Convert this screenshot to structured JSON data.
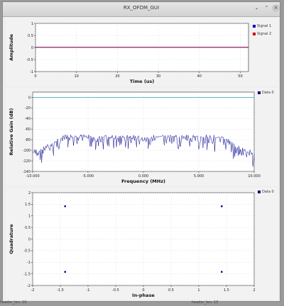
{
  "window": {
    "title": "RX_OFDM_GUI",
    "min_icon": "minimize-icon",
    "max_icon": "maximize-icon",
    "close_icon": "close-icon"
  },
  "footer": {
    "left": "header_len: 10",
    "right": "header_len: 10"
  },
  "colors": {
    "signal1": "#0000cc",
    "signal2": "#cc0000",
    "data0": "#00008b",
    "ref_line": "#3aa3a3"
  },
  "chart_data": [
    {
      "type": "line",
      "title": "",
      "xlabel": "Time (us)",
      "ylabel": "Amplitude",
      "xlim": [
        0,
        52
      ],
      "ylim": [
        -1,
        1
      ],
      "x_ticks": [
        0,
        10,
        20,
        30,
        40,
        50
      ],
      "y_ticks": [
        1,
        0.5,
        0,
        -0.5,
        -1
      ],
      "legend_position": "top-right",
      "series": [
        {
          "name": "Signal 1",
          "color": "#0000cc",
          "x": [
            0,
            52
          ],
          "values": [
            0.01,
            0.01
          ]
        },
        {
          "name": "Signal 2",
          "color": "#cc0000",
          "x": [
            0,
            52
          ],
          "values": [
            0,
            0
          ]
        }
      ]
    },
    {
      "type": "line",
      "title": "",
      "xlabel": "Frequency (MHz)",
      "ylabel": "Relative Gain (dB)",
      "xlim": [
        -10,
        10
      ],
      "ylim": [
        -140,
        10
      ],
      "x_tick_labels": [
        "-10.000",
        "-5.000",
        "0.000",
        "5.000",
        "10.000"
      ],
      "x_ticks": [
        -10,
        -5,
        0,
        5,
        10
      ],
      "y_ticks": [
        0,
        -20,
        -40,
        -60,
        -80,
        -100,
        -120,
        -140
      ],
      "legend_position": "top-right",
      "reference_level": 0,
      "series": [
        {
          "name": "Data 0",
          "color": "#00008b",
          "x": [
            -10,
            -9.5,
            -9,
            -8.5,
            -8,
            -7.5,
            -7,
            -6,
            -5,
            -4,
            -3,
            -2,
            -1,
            0,
            1,
            2,
            3,
            4,
            5,
            6,
            7,
            7.5,
            8,
            8.5,
            9,
            9.5,
            10
          ],
          "values": [
            -102,
            -99,
            -96,
            -90,
            -83,
            -76,
            -73,
            -72,
            -73,
            -74,
            -73,
            -74,
            -72,
            -76,
            -73,
            -72,
            -73,
            -74,
            -73,
            -72,
            -74,
            -78,
            -85,
            -93,
            -98,
            -101,
            -103
          ]
        }
      ]
    },
    {
      "type": "scatter",
      "title": "",
      "xlabel": "In-phase",
      "ylabel": "Quadrature",
      "xlim": [
        -2,
        2
      ],
      "ylim": [
        -2,
        2
      ],
      "x_ticks": [
        -2,
        -1.5,
        -1,
        -0.5,
        0,
        0.5,
        1,
        1.5,
        2
      ],
      "y_ticks": [
        2,
        1.5,
        1,
        0.5,
        0,
        -0.5,
        -1,
        -1.5,
        -2
      ],
      "legend_position": "top-right",
      "series": [
        {
          "name": "Data 0",
          "color": "#00008b",
          "x": [
            -1.414,
            1.414,
            -1.414,
            1.414
          ],
          "values": [
            1.414,
            1.414,
            -1.414,
            -1.414
          ]
        }
      ]
    }
  ]
}
